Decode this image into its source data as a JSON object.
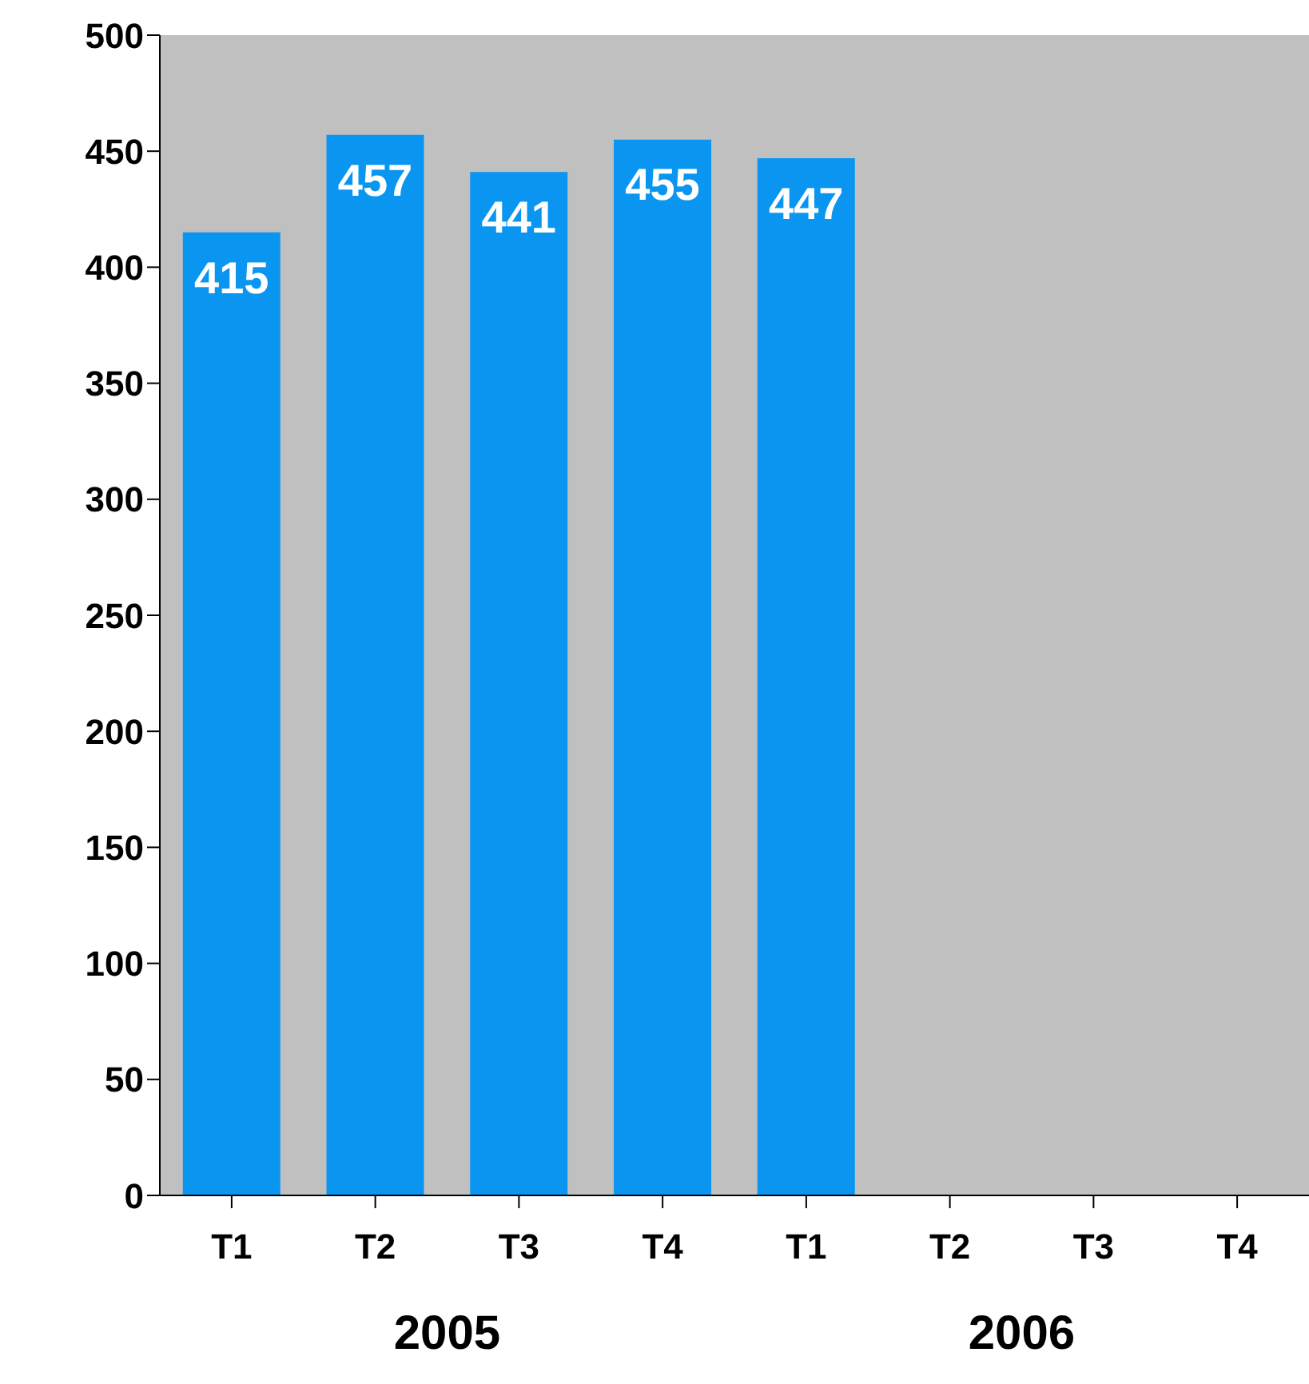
{
  "chart_data": {
    "type": "bar",
    "categories": [
      "T1",
      "T2",
      "T3",
      "T4",
      "T1",
      "T2",
      "T3",
      "T4"
    ],
    "values": [
      415,
      457,
      441,
      455,
      447,
      null,
      null,
      null
    ],
    "color": "#0a96f0",
    "ylim": [
      0,
      500
    ],
    "yticks": [
      0,
      50,
      100,
      150,
      200,
      250,
      300,
      350,
      400,
      450,
      500
    ],
    "grid": false,
    "data_labels": true,
    "annotations": [
      "2005",
      "2006"
    ]
  }
}
